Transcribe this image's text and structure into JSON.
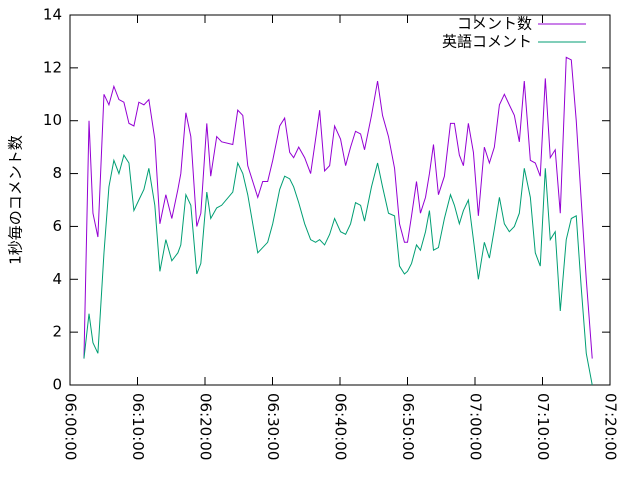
{
  "chart_data": {
    "type": "line",
    "ylabel": "1秒毎のコメント数",
    "x": [
      "06:02:04",
      "06:02:49",
      "06:03:24",
      "06:04:08",
      "06:05:02",
      "06:05:46",
      "06:06:30",
      "06:07:15",
      "06:07:59",
      "06:08:44",
      "06:09:28",
      "06:10:12",
      "06:10:57",
      "06:11:41",
      "06:12:34",
      "06:13:19",
      "06:14:12",
      "06:15:05",
      "06:15:59",
      "06:16:25",
      "06:17:10",
      "06:17:54",
      "06:18:47",
      "06:19:23",
      "06:20:16",
      "06:20:51",
      "06:21:44",
      "06:22:28",
      "06:24:07",
      "06:24:51",
      "06:25:36",
      "06:26:20",
      "06:27:49",
      "06:28:33",
      "06:29:17",
      "06:30:02",
      "06:31:04",
      "06:31:48",
      "06:32:33",
      "06:33:08",
      "06:33:53",
      "06:34:46",
      "06:35:39",
      "06:36:23",
      "06:36:59",
      "06:37:43",
      "06:38:28",
      "06:39:12",
      "06:40:05",
      "06:40:50",
      "06:41:34",
      "06:42:18",
      "06:43:03",
      "06:43:38",
      "06:44:40",
      "06:45:34",
      "06:46:18",
      "06:47:11",
      "06:48:05",
      "06:48:49",
      "06:49:33",
      "06:50:00",
      "06:50:36",
      "06:51:20",
      "06:51:55",
      "06:52:40",
      "06:53:15",
      "06:53:51",
      "06:54:35",
      "06:55:28",
      "06:56:22",
      "06:56:57",
      "06:57:41",
      "06:58:17",
      "06:59:01",
      "06:59:46",
      "07:00:30",
      "07:01:23",
      "07:02:08",
      "07:02:52",
      "07:03:37",
      "07:04:21",
      "07:05:05",
      "07:05:50",
      "07:06:34",
      "07:07:18",
      "07:08:12",
      "07:08:56",
      "07:09:40",
      "07:10:25",
      "07:11:09",
      "07:11:53",
      "07:12:38",
      "07:13:31",
      "07:14:16",
      "07:15:00",
      "07:15:44",
      "07:16:29",
      "07:17:22"
    ],
    "series": [
      {
        "name": "コメント数",
        "color": "#9400d3",
        "values": [
          1.0,
          10.0,
          6.5,
          5.6,
          11.0,
          10.6,
          11.3,
          10.8,
          10.7,
          9.9,
          9.8,
          10.7,
          10.6,
          10.8,
          9.3,
          6.1,
          7.2,
          6.3,
          7.4,
          8.0,
          10.3,
          9.4,
          6.0,
          6.5,
          9.9,
          7.9,
          9.4,
          9.2,
          9.1,
          10.4,
          10.2,
          8.3,
          7.1,
          7.7,
          7.7,
          8.5,
          9.8,
          10.1,
          8.8,
          8.6,
          9.0,
          8.6,
          8.0,
          9.3,
          10.4,
          8.1,
          8.3,
          9.8,
          9.3,
          8.3,
          9.0,
          9.6,
          9.5,
          8.9,
          10.2,
          11.5,
          10.2,
          9.4,
          8.2,
          6.1,
          5.4,
          5.4,
          6.4,
          7.7,
          6.5,
          7.1,
          8.0,
          9.1,
          7.2,
          7.9,
          9.9,
          9.9,
          8.7,
          8.3,
          9.9,
          8.8,
          6.4,
          9.0,
          8.4,
          9.0,
          10.6,
          11.0,
          10.6,
          10.2,
          9.2,
          11.5,
          8.5,
          8.4,
          7.9,
          11.6,
          8.6,
          8.9,
          6.5,
          12.4,
          12.3,
          10.0,
          7.0,
          4.0,
          1.0
        ]
      },
      {
        "name": "英語コメント",
        "color": "#009e73",
        "values": [
          1.0,
          2.7,
          1.6,
          1.2,
          5.0,
          7.5,
          8.5,
          8.0,
          8.7,
          8.4,
          6.6,
          7.0,
          7.4,
          8.2,
          6.8,
          4.3,
          5.5,
          4.7,
          5.0,
          5.3,
          7.2,
          6.8,
          4.2,
          4.6,
          7.3,
          6.3,
          6.7,
          6.8,
          7.3,
          8.4,
          8.0,
          7.2,
          5.0,
          5.2,
          5.4,
          6.1,
          7.4,
          7.9,
          7.8,
          7.5,
          6.9,
          6.1,
          5.5,
          5.4,
          5.5,
          5.3,
          5.7,
          6.3,
          5.8,
          5.7,
          6.1,
          6.9,
          6.8,
          6.2,
          7.5,
          8.4,
          7.5,
          6.5,
          6.4,
          4.5,
          4.2,
          4.3,
          4.6,
          5.3,
          5.1,
          5.8,
          6.6,
          5.1,
          5.2,
          6.3,
          7.2,
          6.8,
          6.1,
          6.6,
          7.0,
          5.5,
          4.0,
          5.4,
          4.8,
          5.9,
          7.1,
          6.1,
          5.8,
          6.0,
          6.5,
          8.2,
          7.1,
          5.0,
          4.5,
          8.2,
          5.5,
          5.8,
          2.8,
          5.5,
          6.3,
          6.4,
          3.7,
          1.2,
          0.0
        ]
      }
    ],
    "xlim": [
      "06:00:00",
      "07:20:00"
    ],
    "xticks": [
      "06:00:00",
      "06:10:00",
      "06:20:00",
      "06:30:00",
      "06:40:00",
      "06:50:00",
      "07:00:00",
      "07:10:00",
      "07:20:00"
    ],
    "ylim": [
      0,
      14
    ],
    "yticks": [
      0,
      2,
      4,
      6,
      8,
      10,
      12,
      14
    ],
    "legend": "top-right"
  }
}
